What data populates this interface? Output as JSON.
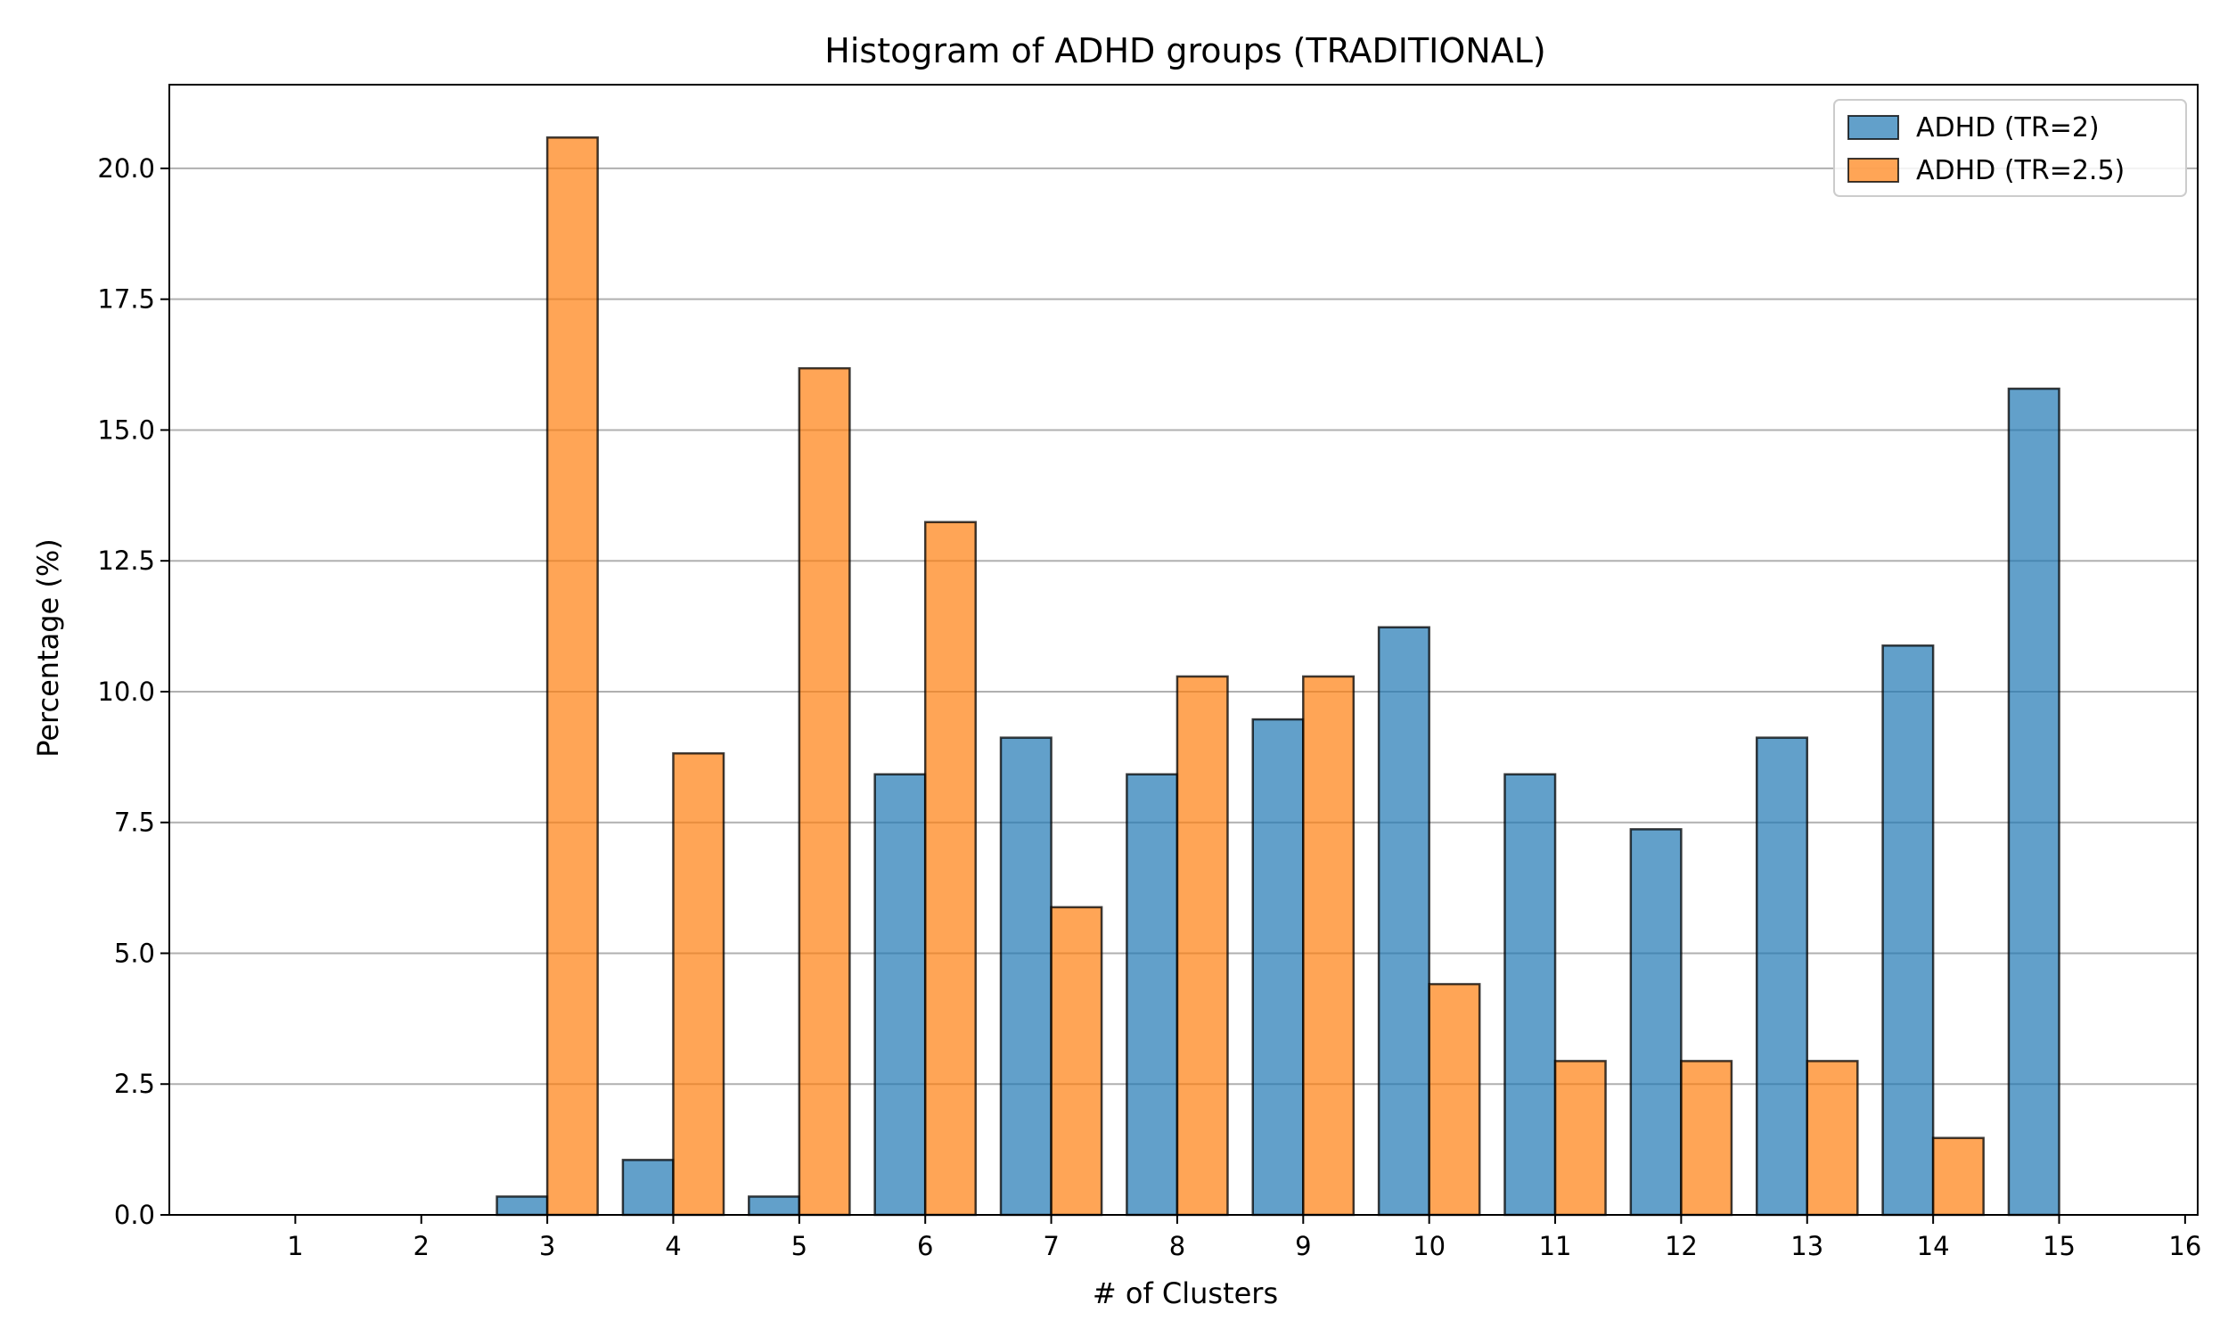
{
  "chart_data": {
    "type": "bar",
    "title": "Histogram of ADHD groups (TRADITIONAL)",
    "xlabel": "# of Clusters",
    "ylabel": "Percentage (%)",
    "x_ticks": [
      1,
      2,
      3,
      4,
      5,
      6,
      7,
      8,
      9,
      10,
      11,
      12,
      13,
      14,
      15,
      16
    ],
    "y_ticks": [
      0.0,
      2.5,
      5.0,
      7.5,
      10.0,
      12.5,
      15.0,
      17.5,
      20.0
    ],
    "y_tick_labels": [
      "0.0",
      "2.5",
      "5.0",
      "7.5",
      "10.0",
      "12.5",
      "15.0",
      "17.5",
      "20.0"
    ],
    "xlim": [
      0,
      16.1
    ],
    "ylim": [
      0,
      21.6
    ],
    "grid": "y",
    "legend_position": "top-right",
    "categories": [
      1,
      2,
      3,
      4,
      5,
      6,
      7,
      8,
      9,
      10,
      11,
      12,
      13,
      14,
      15
    ],
    "series": [
      {
        "name": "ADHD (TR=2)",
        "color": "#1f77b4",
        "values": [
          0,
          0,
          0.35,
          1.05,
          0.35,
          8.42,
          9.12,
          8.42,
          9.47,
          11.23,
          8.42,
          7.37,
          9.12,
          10.88,
          15.79
        ]
      },
      {
        "name": "ADHD (TR=2.5)",
        "color": "#ff7f0e",
        "values": [
          0,
          0,
          20.59,
          8.82,
          16.18,
          13.24,
          5.88,
          10.29,
          10.29,
          4.41,
          2.94,
          2.94,
          2.94,
          1.47,
          0
        ]
      }
    ]
  }
}
